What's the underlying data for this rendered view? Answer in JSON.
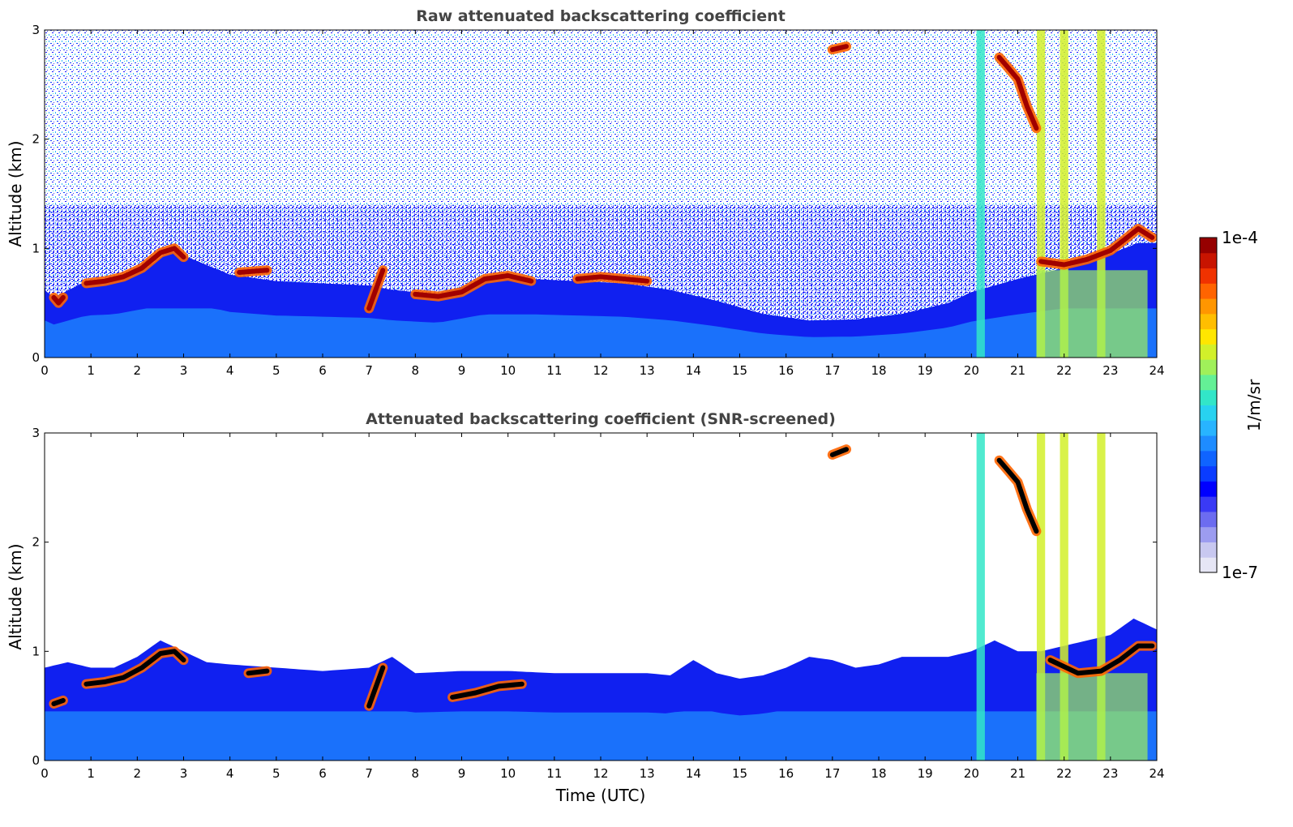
{
  "chart_data": [
    {
      "type": "heatmap",
      "title": "Raw attenuated backscattering coefficient",
      "xlabel": "",
      "ylabel": "Altitude (km)",
      "x_ticks": [
        "0",
        "1",
        "2",
        "3",
        "4",
        "5",
        "6",
        "7",
        "8",
        "9",
        "10",
        "11",
        "12",
        "13",
        "14",
        "15",
        "16",
        "17",
        "18",
        "19",
        "20",
        "21",
        "22",
        "23",
        "24"
      ],
      "y_ticks": [
        "0",
        "1",
        "2",
        "3"
      ],
      "xlim": [
        0,
        24
      ],
      "ylim": [
        0,
        3
      ],
      "screened": false,
      "layer_top_km": [
        [
          0,
          0.62
        ],
        [
          0.2,
          0.55
        ],
        [
          0.9,
          0.7
        ],
        [
          1.5,
          0.72
        ],
        [
          2.2,
          0.82
        ],
        [
          2.7,
          0.98
        ],
        [
          3.2,
          0.9
        ],
        [
          4.0,
          0.76
        ],
        [
          5.0,
          0.7
        ],
        [
          6.0,
          0.68
        ],
        [
          7.0,
          0.66
        ],
        [
          7.5,
          0.62
        ],
        [
          8.5,
          0.58
        ],
        [
          9.5,
          0.72
        ],
        [
          10.5,
          0.72
        ],
        [
          11.5,
          0.7
        ],
        [
          12.5,
          0.68
        ],
        [
          13.5,
          0.62
        ],
        [
          14.5,
          0.52
        ],
        [
          15.5,
          0.4
        ],
        [
          16.5,
          0.34
        ],
        [
          17.5,
          0.35
        ],
        [
          18.5,
          0.4
        ],
        [
          19.5,
          0.5
        ],
        [
          20.0,
          0.6
        ],
        [
          21.0,
          0.72
        ],
        [
          22.0,
          0.82
        ],
        [
          23.0,
          0.95
        ],
        [
          23.6,
          1.05
        ],
        [
          24.0,
          1.05
        ]
      ],
      "cloud_layers": [
        {
          "x": [
            0.2,
            0.3,
            0.4
          ],
          "y": [
            0.55,
            0.5,
            0.55
          ]
        },
        {
          "x": [
            0.9,
            1.3,
            1.7,
            2.1,
            2.5,
            2.8,
            3.0
          ],
          "y": [
            0.68,
            0.7,
            0.74,
            0.82,
            0.96,
            1.0,
            0.92
          ]
        },
        {
          "x": [
            4.2,
            4.8
          ],
          "y": [
            0.78,
            0.8
          ]
        },
        {
          "x": [
            7.0,
            7.3
          ],
          "y": [
            0.45,
            0.8
          ]
        },
        {
          "x": [
            8.0,
            8.5,
            9.0,
            9.5,
            10.0,
            10.5
          ],
          "y": [
            0.58,
            0.56,
            0.6,
            0.72,
            0.75,
            0.7
          ]
        },
        {
          "x": [
            11.5,
            12.0,
            13.0
          ],
          "y": [
            0.72,
            0.74,
            0.7
          ]
        },
        {
          "x": [
            17.0,
            17.3
          ],
          "y": [
            2.82,
            2.85
          ]
        },
        {
          "x": [
            20.6,
            20.8,
            21.0,
            21.2,
            21.4
          ],
          "y": [
            2.75,
            2.65,
            2.55,
            2.3,
            2.1
          ]
        },
        {
          "x": [
            21.5,
            22.0,
            22.5,
            23.0,
            23.3,
            23.6,
            23.9
          ],
          "y": [
            0.88,
            0.85,
            0.9,
            0.98,
            1.08,
            1.18,
            1.1
          ]
        }
      ],
      "precipitation_columns": [
        20.2,
        21.5,
        22.0,
        22.8
      ]
    },
    {
      "type": "heatmap",
      "title": "Attenuated backscattering coefficient (SNR-screened)",
      "xlabel": "Time (UTC)",
      "ylabel": "Altitude (km)",
      "x_ticks": [
        "0",
        "1",
        "2",
        "3",
        "4",
        "5",
        "6",
        "7",
        "8",
        "9",
        "10",
        "11",
        "12",
        "13",
        "14",
        "15",
        "16",
        "17",
        "18",
        "19",
        "20",
        "21",
        "22",
        "23",
        "24"
      ],
      "y_ticks": [
        "0",
        "1",
        "2",
        "3"
      ],
      "xlim": [
        0,
        24
      ],
      "ylim": [
        0,
        3
      ],
      "screened": true,
      "layer_top_km": [
        [
          0,
          0.85
        ],
        [
          0.5,
          0.9
        ],
        [
          1.0,
          0.85
        ],
        [
          1.5,
          0.85
        ],
        [
          2.0,
          0.95
        ],
        [
          2.5,
          1.1
        ],
        [
          3.0,
          1.0
        ],
        [
          3.5,
          0.9
        ],
        [
          4.0,
          0.88
        ],
        [
          5.0,
          0.85
        ],
        [
          6.0,
          0.82
        ],
        [
          7.0,
          0.85
        ],
        [
          7.5,
          0.95
        ],
        [
          8.0,
          0.8
        ],
        [
          9.0,
          0.82
        ],
        [
          10.0,
          0.82
        ],
        [
          11.0,
          0.8
        ],
        [
          12.0,
          0.8
        ],
        [
          13.0,
          0.8
        ],
        [
          13.5,
          0.78
        ],
        [
          14.0,
          0.92
        ],
        [
          14.5,
          0.8
        ],
        [
          15.0,
          0.75
        ],
        [
          15.5,
          0.78
        ],
        [
          16.0,
          0.85
        ],
        [
          16.5,
          0.95
        ],
        [
          17.0,
          0.92
        ],
        [
          17.5,
          0.85
        ],
        [
          18.0,
          0.88
        ],
        [
          18.5,
          0.95
        ],
        [
          19.0,
          0.95
        ],
        [
          19.5,
          0.95
        ],
        [
          20.0,
          1.0
        ],
        [
          20.5,
          1.1
        ],
        [
          21.0,
          1.0
        ],
        [
          21.5,
          1.0
        ],
        [
          22.0,
          1.05
        ],
        [
          23.0,
          1.15
        ],
        [
          23.5,
          1.3
        ],
        [
          24.0,
          1.2
        ]
      ],
      "cloud_layers": [
        {
          "x": [
            0.2,
            0.4
          ],
          "y": [
            0.52,
            0.55
          ]
        },
        {
          "x": [
            0.9,
            1.3,
            1.7,
            2.1,
            2.5,
            2.8,
            3.0
          ],
          "y": [
            0.7,
            0.72,
            0.76,
            0.85,
            0.98,
            1.0,
            0.92
          ]
        },
        {
          "x": [
            4.4,
            4.8
          ],
          "y": [
            0.8,
            0.82
          ]
        },
        {
          "x": [
            7.0,
            7.3
          ],
          "y": [
            0.5,
            0.85
          ]
        },
        {
          "x": [
            8.8,
            9.3,
            9.8,
            10.3
          ],
          "y": [
            0.58,
            0.62,
            0.68,
            0.7
          ]
        },
        {
          "x": [
            17.0,
            17.3
          ],
          "y": [
            2.8,
            2.85
          ]
        },
        {
          "x": [
            20.6,
            20.8,
            21.0,
            21.2,
            21.4
          ],
          "y": [
            2.75,
            2.65,
            2.55,
            2.3,
            2.1
          ]
        },
        {
          "x": [
            21.7,
            22.3,
            22.8,
            23.2,
            23.6,
            23.9
          ],
          "y": [
            0.92,
            0.8,
            0.82,
            0.92,
            1.05,
            1.05
          ]
        }
      ],
      "precipitation_columns": [
        20.2,
        21.5,
        22.0,
        22.8
      ]
    }
  ],
  "colorbar": {
    "label": "1/m/sr",
    "max_label": "1e-4",
    "min_label": "1e-7",
    "colors": [
      "#e6e6f5",
      "#c8c8f0",
      "#9c9cf0",
      "#6c6cf0",
      "#3a3af5",
      "#0000ff",
      "#0a3cff",
      "#0f64ff",
      "#1e8cff",
      "#28b4ff",
      "#28d2f0",
      "#32e6c8",
      "#64f096",
      "#a0f05a",
      "#d2f02a",
      "#ffe600",
      "#ffbe00",
      "#ff9600",
      "#ff6400",
      "#f03200",
      "#c81400",
      "#960000"
    ]
  }
}
